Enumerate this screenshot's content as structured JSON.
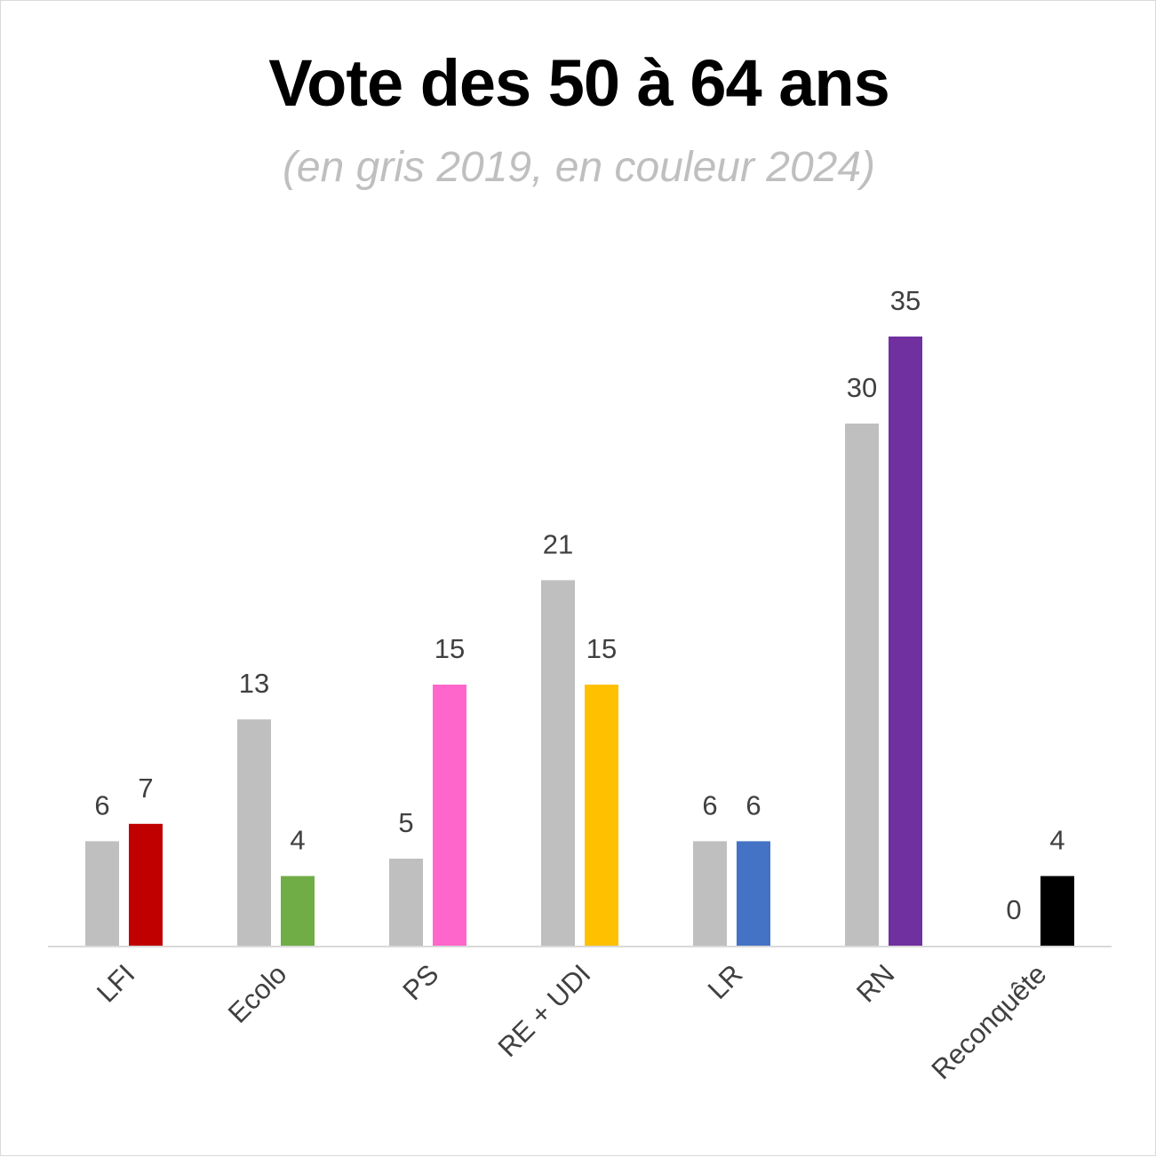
{
  "chart_data": {
    "type": "bar",
    "title": "Vote des 50 à 64 ans",
    "subtitle": "(en gris 2019, en couleur 2024)",
    "categories": [
      "LFI",
      "Ecolo",
      "PS",
      "RE + UDI",
      "LR",
      "RN",
      "Reconquête"
    ],
    "series": [
      {
        "values": [
          6,
          13,
          5,
          21,
          6,
          30,
          0
        ],
        "colors": [
          "#bfbfbf",
          "#bfbfbf",
          "#bfbfbf",
          "#bfbfbf",
          "#bfbfbf",
          "#bfbfbf",
          "#bfbfbf"
        ]
      },
      {
        "values": [
          7,
          4,
          15,
          15,
          6,
          35,
          4
        ],
        "colors": [
          "#c00000",
          "#70ad47",
          "#ff66cc",
          "#ffc000",
          "#4472c4",
          "#7030a0",
          "#000000"
        ]
      }
    ],
    "ylim": [
      0,
      40
    ],
    "grid": false,
    "legend": "none"
  }
}
